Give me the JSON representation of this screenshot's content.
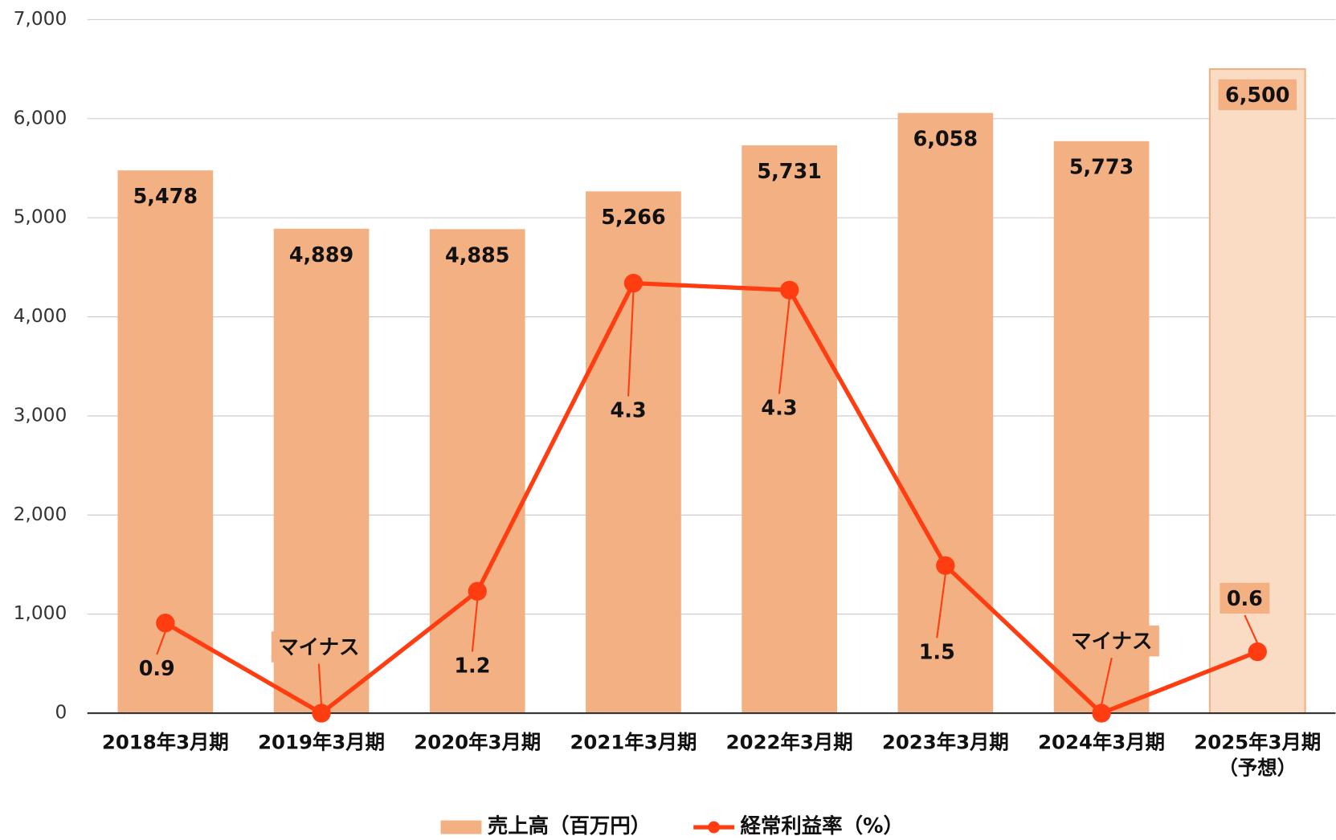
{
  "chart_data": {
    "type": "bar_line",
    "categories": [
      "2018年3月期",
      "2019年3月期",
      "2020年3月期",
      "2021年3月期",
      "2022年3月期",
      "2023年3月期",
      "2024年3月期",
      "2025年3月期\n（予想）"
    ],
    "series": [
      {
        "name": "売上高（百万円）",
        "type": "bar",
        "color": "#f3b083",
        "colors": [
          "#f3b083",
          "#f3b083",
          "#f3b083",
          "#f3b083",
          "#f3b083",
          "#f3b083",
          "#f3b083",
          "#fadcc4"
        ],
        "values": [
          5478,
          4889,
          4885,
          5266,
          5731,
          6058,
          5773,
          6500
        ],
        "value_labels": [
          "5,478",
          "4,889",
          "4,885",
          "5,266",
          "5,731",
          "6,058",
          "5,773",
          "6,500"
        ]
      },
      {
        "name": "経常利益率（%）",
        "type": "line",
        "axis": "y2",
        "color": "#ff3d10",
        "values": [
          0.91,
          0,
          1.23,
          4.34,
          4.27,
          1.49,
          0,
          0.62
        ],
        "value_labels": [
          "0.9",
          "マイナス",
          "1.2",
          "4.3",
          "4.3",
          "1.5",
          "マイナス",
          "0.6"
        ]
      }
    ],
    "ylim": [
      0,
      7000
    ],
    "yticks": [
      {
        "value": 0,
        "label": "0"
      },
      {
        "value": 1000,
        "label": "1,000"
      },
      {
        "value": 2000,
        "label": "2,000"
      },
      {
        "value": 3000,
        "label": "3,000"
      },
      {
        "value": 4000,
        "label": "4,000"
      },
      {
        "value": 5000,
        "label": "5,000"
      },
      {
        "value": 6000,
        "label": "6,000"
      },
      {
        "value": 7000,
        "label": "7,000"
      }
    ],
    "y2lim": [
      0,
      7
    ],
    "grid": true,
    "legend": "bottom"
  }
}
